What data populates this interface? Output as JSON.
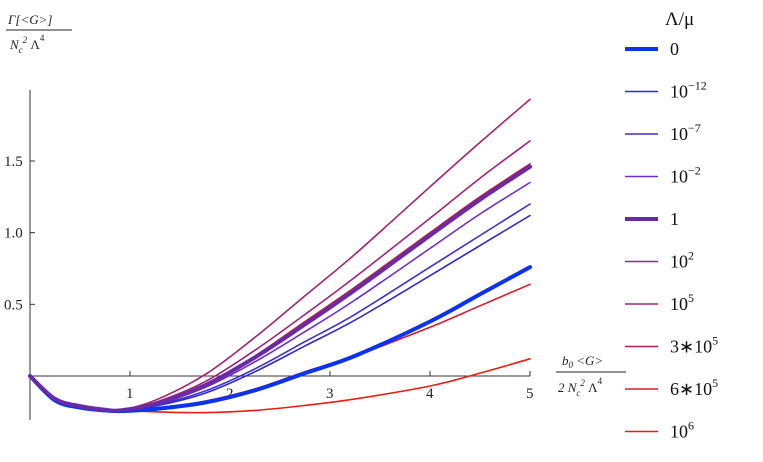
{
  "chart_data": {
    "type": "line",
    "ylabel_num": "Γ[<G>]",
    "ylabel_den_a": "N",
    "ylabel_den_b": "c",
    "ylabel_den_c": "2",
    "ylabel_den_d": " Λ",
    "ylabel_den_e": "4",
    "xlabel_num_a": "b",
    "xlabel_num_b": "0",
    "xlabel_num_c": " <G>",
    "xlabel_den_a": "2 N",
    "xlabel_den_b": "c",
    "xlabel_den_c": "2",
    "xlabel_den_d": " Λ",
    "xlabel_den_e": "4",
    "xlim": [
      0,
      5
    ],
    "ylim": [
      -0.25,
      1.95
    ],
    "x_ticks": [
      1,
      2,
      3,
      4,
      5
    ],
    "x_tick_labels": [
      "1",
      "2",
      "3",
      "4",
      "5"
    ],
    "y_ticks": [
      0.5,
      1.0,
      1.5
    ],
    "y_tick_labels": [
      "0.5",
      "1.0",
      "1.5"
    ],
    "legend_title": "Λ/μ",
    "legend_position": "right",
    "grid": false,
    "series": [
      {
        "name": "0",
        "legend_base": "0",
        "legend_exp": "",
        "color": "#0b32f2",
        "width": 4.0,
        "x": [
          0,
          0.25,
          0.5,
          0.75,
          0.9,
          1.25,
          1.75,
          2.25,
          2.75,
          3.25,
          4.0,
          4.5,
          5.0
        ],
        "y": [
          0,
          -0.17,
          -0.22,
          -0.24,
          -0.245,
          -0.23,
          -0.185,
          -0.1,
          0.02,
          0.14,
          0.38,
          0.57,
          0.76
        ]
      },
      {
        "name": "10^-12",
        "legend_base": "10",
        "legend_exp": "−12",
        "color": "#2a2ad6",
        "width": 1.6,
        "x": [
          0,
          0.25,
          0.5,
          0.75,
          0.9,
          1.25,
          1.75,
          2.25,
          2.75,
          3.25,
          4.0,
          4.5,
          5.0
        ],
        "y": [
          0,
          -0.16,
          -0.21,
          -0.235,
          -0.24,
          -0.21,
          -0.12,
          0.03,
          0.21,
          0.39,
          0.7,
          0.91,
          1.12
        ]
      },
      {
        "name": "10^-7",
        "legend_base": "10",
        "legend_exp": "−7",
        "color": "#3d2fd2",
        "width": 1.6,
        "x": [
          0,
          0.25,
          0.5,
          0.75,
          0.9,
          1.25,
          1.75,
          2.25,
          2.75,
          3.25,
          4.0,
          4.5,
          5.0
        ],
        "y": [
          0,
          -0.16,
          -0.21,
          -0.235,
          -0.24,
          -0.205,
          -0.105,
          0.05,
          0.24,
          0.43,
          0.76,
          0.98,
          1.2
        ]
      },
      {
        "name": "10^-2",
        "legend_base": "10",
        "legend_exp": "−2",
        "color": "#6a2ed0",
        "width": 1.6,
        "x": [
          0,
          0.25,
          0.5,
          0.75,
          0.9,
          1.25,
          1.75,
          2.25,
          2.75,
          3.25,
          4.0,
          4.5,
          5.0
        ],
        "y": [
          0,
          -0.16,
          -0.21,
          -0.235,
          -0.24,
          -0.2,
          -0.08,
          0.1,
          0.31,
          0.53,
          0.89,
          1.13,
          1.35
        ]
      },
      {
        "name": "1",
        "legend_base": "1",
        "legend_exp": "",
        "color": "#6a2aa6",
        "width": 4.0,
        "x": [
          0,
          0.25,
          0.5,
          0.75,
          0.9,
          1.25,
          1.75,
          2.25,
          2.75,
          3.25,
          4.0,
          4.5,
          5.0
        ],
        "y": [
          0,
          -0.16,
          -0.21,
          -0.235,
          -0.24,
          -0.195,
          -0.065,
          0.13,
          0.36,
          0.6,
          0.98,
          1.23,
          1.46
        ]
      },
      {
        "name": "10^2",
        "legend_base": "10",
        "legend_exp": "2",
        "color": "#a0227e",
        "width": 1.6,
        "x": [
          0,
          0.25,
          0.5,
          0.75,
          0.9,
          1.25,
          1.75,
          2.25,
          2.75,
          3.25,
          4.0,
          4.5,
          5.0
        ],
        "y": [
          0,
          -0.16,
          -0.21,
          -0.235,
          -0.24,
          -0.185,
          -0.04,
          0.18,
          0.43,
          0.69,
          1.1,
          1.38,
          1.64
        ]
      },
      {
        "name": "10^5",
        "legend_base": "10",
        "legend_exp": "5",
        "color": "#a3236f",
        "width": 1.6,
        "x": [
          0,
          0.25,
          0.5,
          0.75,
          0.9,
          1.25,
          1.75,
          2.25,
          2.75,
          3.25,
          4.0,
          4.5,
          5.0
        ],
        "y": [
          0,
          -0.16,
          -0.21,
          -0.235,
          -0.24,
          -0.17,
          0.01,
          0.27,
          0.56,
          0.85,
          1.32,
          1.63,
          1.93
        ]
      },
      {
        "name": "3*10^5",
        "legend_base": "3∗10",
        "legend_exp": "5",
        "color": "#b81c4e",
        "width": 1.6,
        "x": [
          0,
          0.25,
          0.5,
          0.75,
          0.9,
          1.25,
          1.75,
          2.25,
          2.75,
          3.25,
          4.0,
          4.5,
          5.0
        ],
        "y": [
          0,
          -0.16,
          -0.21,
          -0.235,
          -0.24,
          -0.195,
          -0.06,
          0.14,
          0.38,
          0.62,
          1.0,
          1.25,
          1.48
        ]
      },
      {
        "name": "6*10^5",
        "legend_base": "6∗10",
        "legend_exp": "5",
        "color": "#de1a2a",
        "width": 1.6,
        "x": [
          0,
          0.25,
          0.5,
          0.75,
          0.9,
          1.25,
          1.75,
          2.25,
          2.75,
          3.25,
          4.0,
          4.5,
          5.0
        ],
        "y": [
          0,
          -0.16,
          -0.21,
          -0.235,
          -0.24,
          -0.225,
          -0.175,
          -0.09,
          0.03,
          0.14,
          0.34,
          0.49,
          0.64
        ]
      },
      {
        "name": "10^6",
        "legend_base": "10",
        "legend_exp": "6",
        "color": "#ef1a12",
        "width": 1.6,
        "x": [
          0,
          0.25,
          0.5,
          0.75,
          0.9,
          1.25,
          1.75,
          2.25,
          2.75,
          3.25,
          4.0,
          4.5,
          5.0
        ],
        "y": [
          0,
          -0.16,
          -0.21,
          -0.235,
          -0.24,
          -0.25,
          -0.255,
          -0.24,
          -0.205,
          -0.16,
          -0.07,
          0.02,
          0.12
        ]
      }
    ]
  }
}
